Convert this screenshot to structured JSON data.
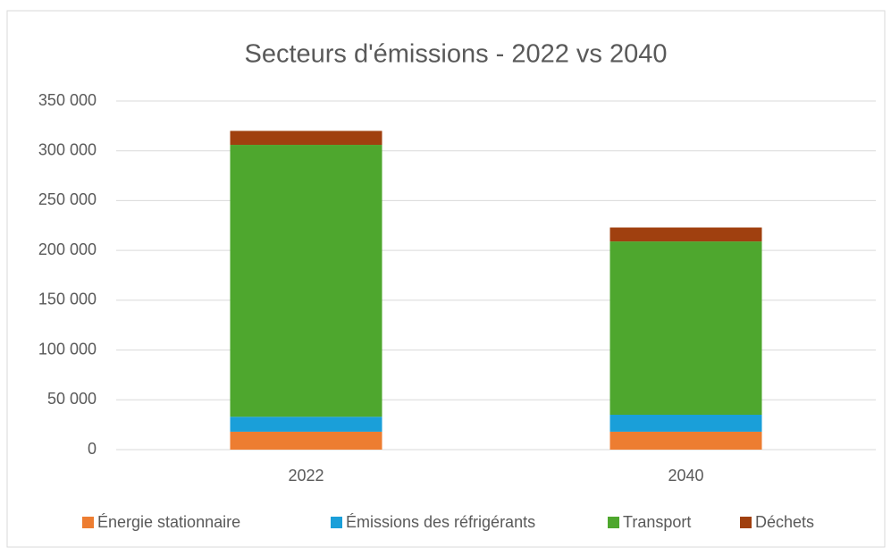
{
  "chart_data": {
    "type": "bar",
    "stacked": true,
    "title": "Secteurs d'émissions - 2022 vs 2040",
    "categories": [
      "2022",
      "2040"
    ],
    "series": [
      {
        "name": "Énergie stationnaire",
        "color": "#ed7d31",
        "values": [
          18000,
          18000
        ]
      },
      {
        "name": "Émissions des réfrigérants",
        "color": "#1a9fd9",
        "values": [
          15000,
          17000
        ]
      },
      {
        "name": "Transport",
        "color": "#4ea72e",
        "values": [
          273000,
          174000
        ]
      },
      {
        "name": "Déchets",
        "color": "#a0400f",
        "values": [
          14000,
          14000
        ]
      }
    ],
    "ylim": [
      0,
      350000
    ],
    "yticks": [
      0,
      {
        "value": 50000,
        "label": "50 000"
      },
      {
        "value": 100000,
        "label": "100 000"
      },
      {
        "value": 150000,
        "label": "150 000"
      },
      {
        "value": 200000,
        "label": "200 000"
      },
      {
        "value": 250000,
        "label": "250 000"
      },
      {
        "value": 300000,
        "label": "300 000"
      },
      {
        "value": 350000,
        "label": "350 000"
      }
    ],
    "grid": true,
    "legend": "bottom"
  }
}
